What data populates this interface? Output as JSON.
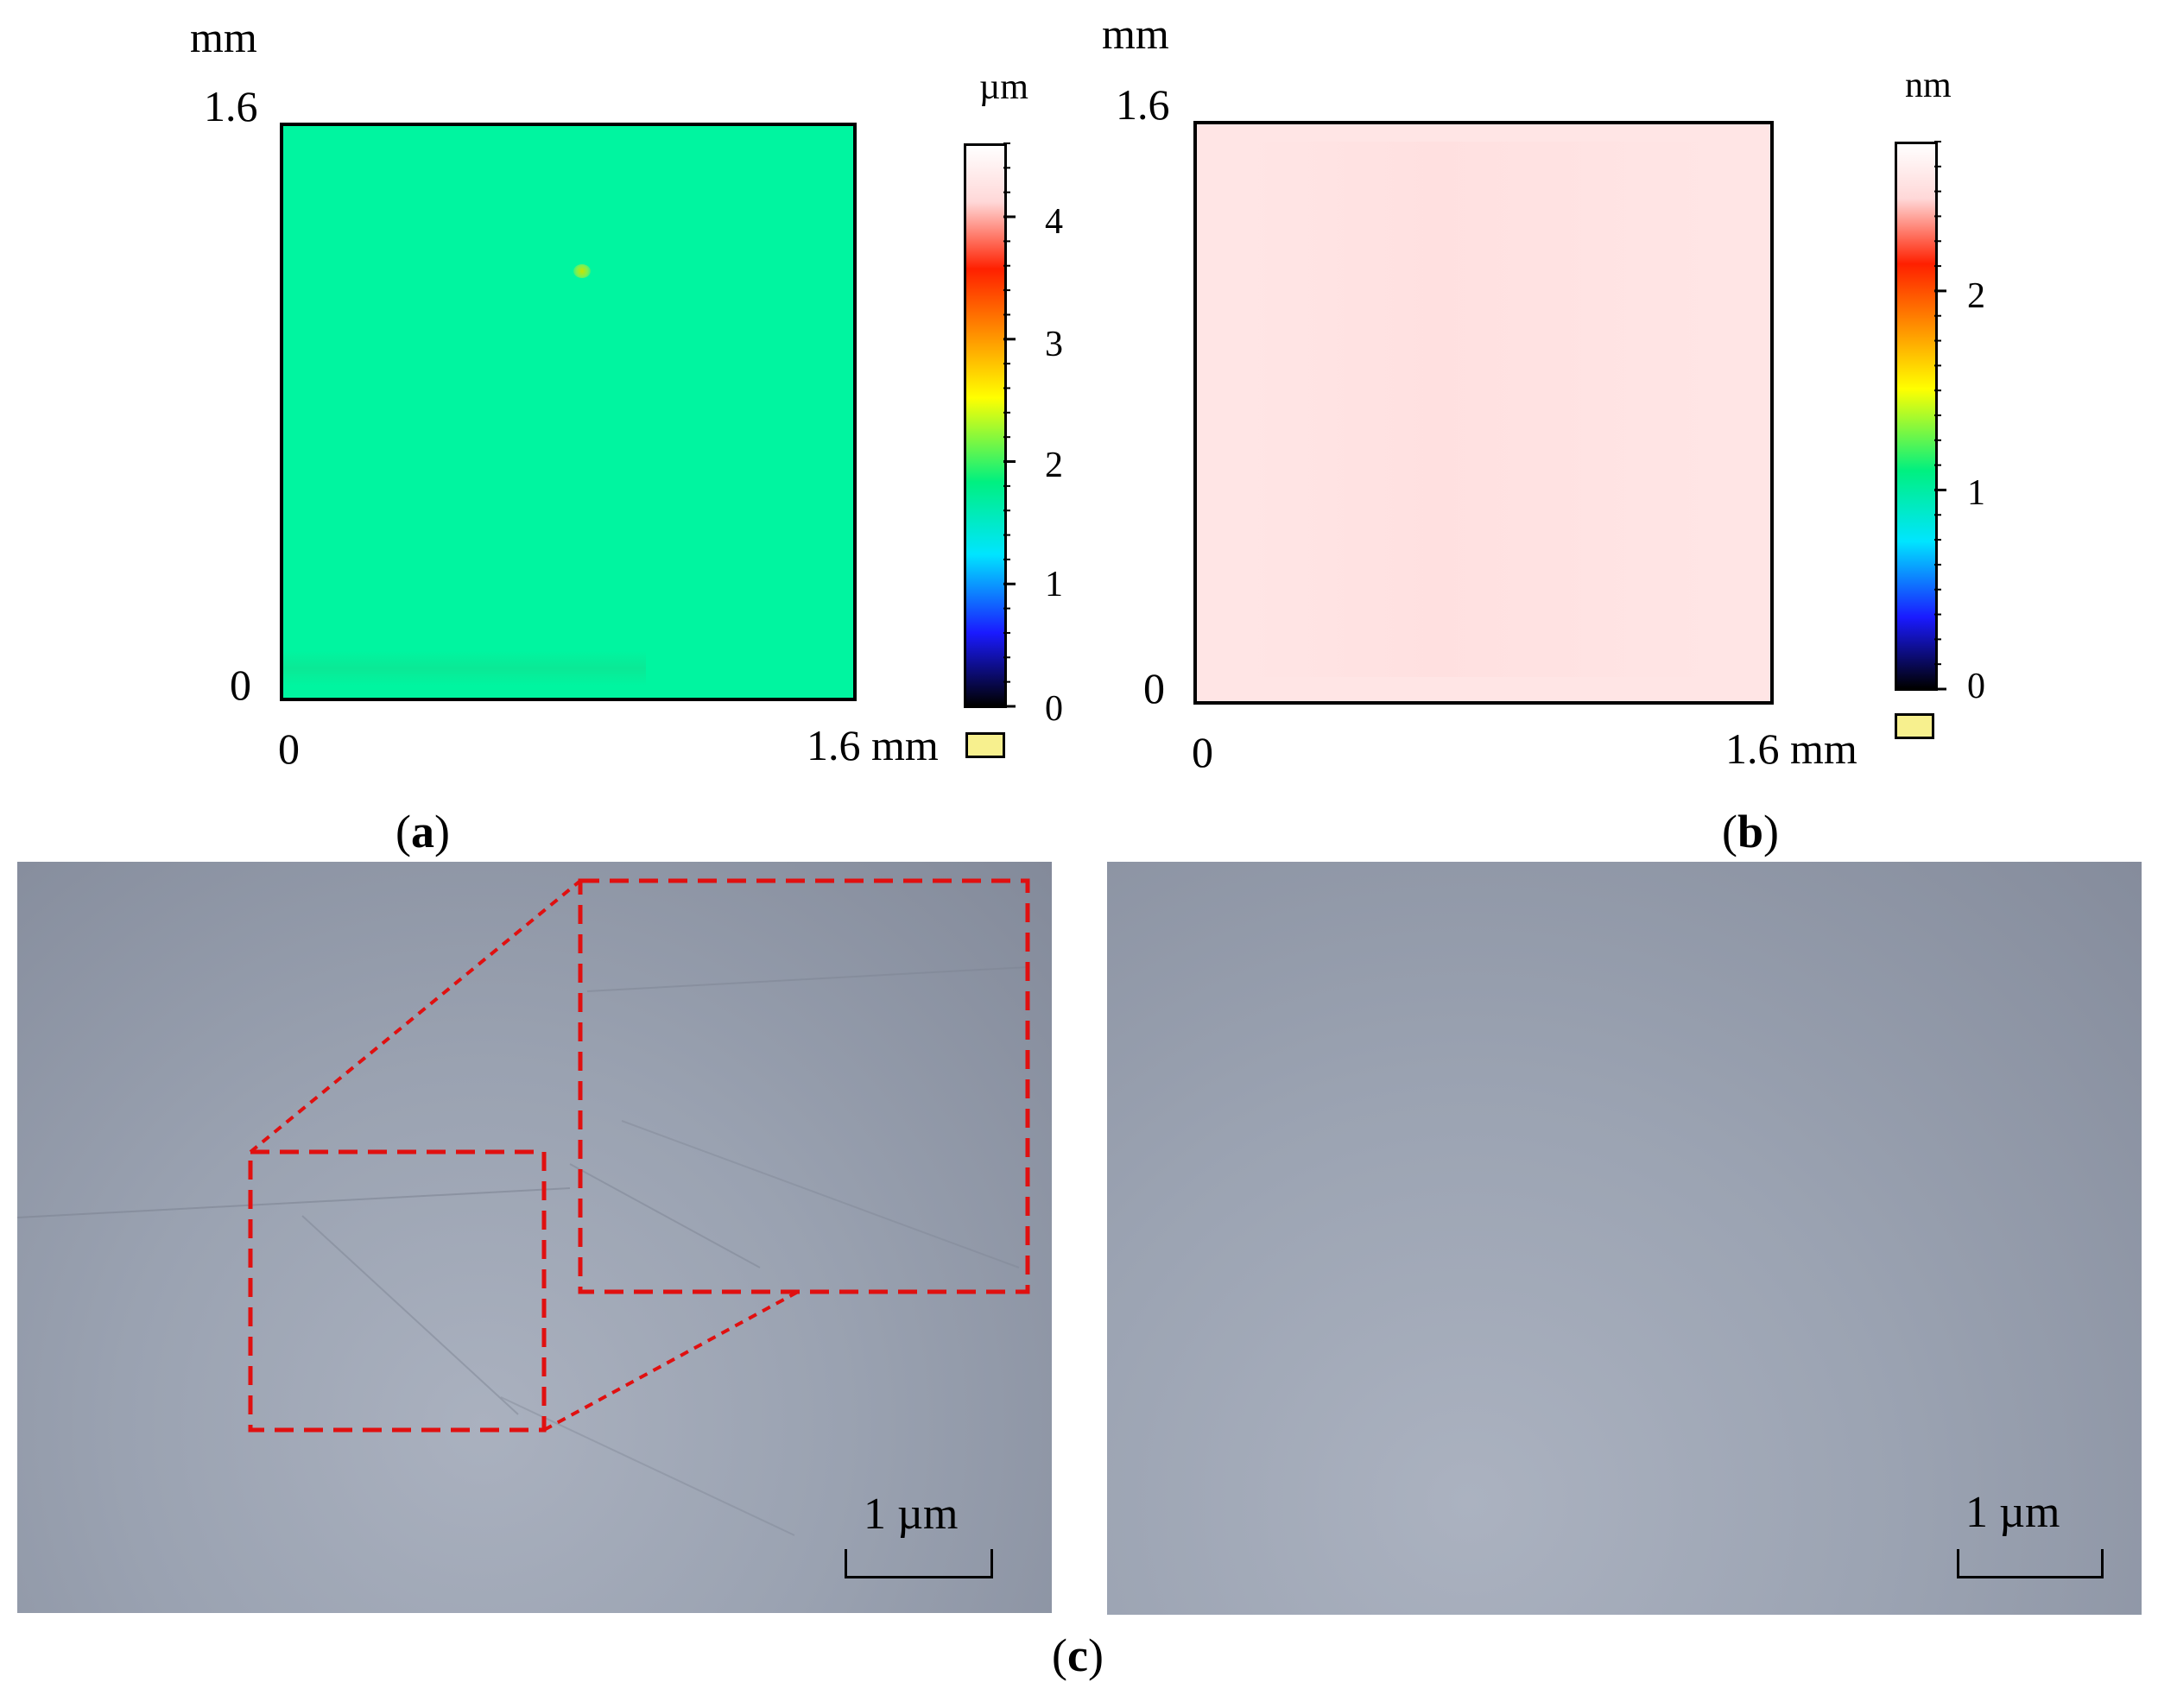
{
  "panel_a": {
    "y_unit": "mm",
    "y_max": "1.6",
    "y_min": "0",
    "x_min": "0",
    "x_max": "1.6 mm",
    "colorbar_unit": "µm",
    "colorbar_ticks": [
      "4",
      "3",
      "2",
      "1",
      "0"
    ],
    "colorbar_range": [
      0,
      4.6
    ],
    "map_color": "#00f5a0",
    "caption_letter": "a"
  },
  "panel_b": {
    "y_unit": "mm",
    "y_max": "1.6",
    "y_min": "0",
    "x_min": "0",
    "x_max": "1.6 mm",
    "colorbar_unit": "nm",
    "colorbar_ticks": [
      "2",
      "1",
      "0"
    ],
    "colorbar_range": [
      0,
      2.75
    ],
    "map_color": "#ffe5e5",
    "caption_letter": "b"
  },
  "panel_c": {
    "left_scale_label": "1 µm",
    "right_scale_label": "1 µm",
    "caption_letter": "c",
    "zoom_box_color": "#e01010",
    "image_color": "#a1a8b6"
  },
  "colors": {
    "spectrum": [
      "#000000",
      "#1a1aff",
      "#00e5ff",
      "#00f080",
      "#ffff00",
      "#ff8000",
      "#ff2000",
      "#ffffff"
    ]
  }
}
